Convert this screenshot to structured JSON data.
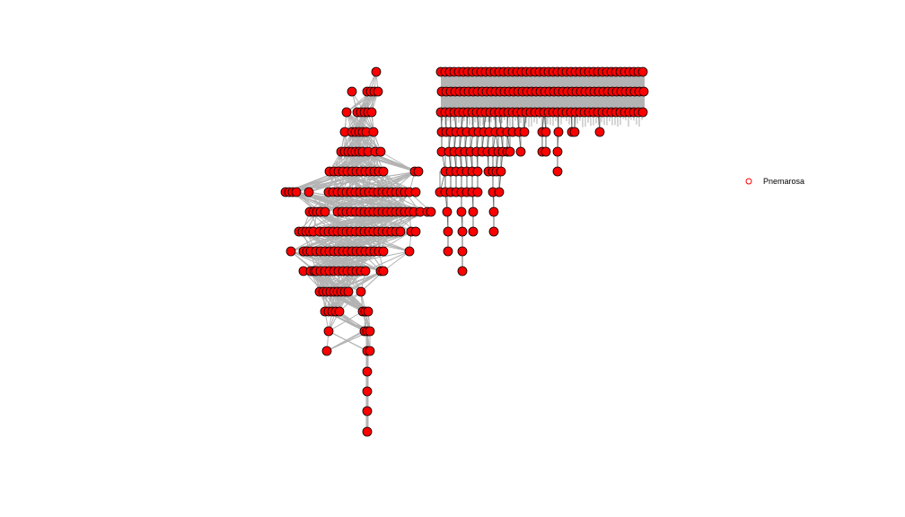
{
  "legend": {
    "label": "Pnemarosa",
    "marker_color": "#ff0000"
  },
  "colors": {
    "node_fill": "#ff0000",
    "node_stroke": "#000000",
    "edge": "#b3b3b3",
    "background": "#ffffff"
  }
}
